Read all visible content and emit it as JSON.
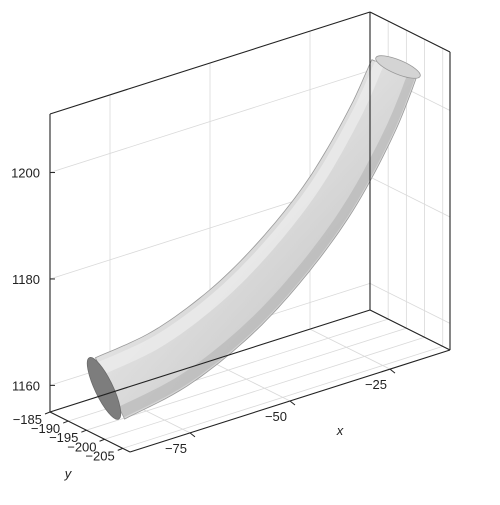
{
  "chart_data": {
    "type": "surface3d",
    "title": "",
    "axes": {
      "x": {
        "label": "x",
        "range": [
          -90,
          -10
        ],
        "ticks": [
          -75,
          -50,
          -25
        ],
        "tick_labels": [
          "−75",
          "−50",
          "−25"
        ]
      },
      "y": {
        "label": "y",
        "range": [
          -185,
          -207
        ],
        "ticks": [
          -185,
          -190,
          -195,
          -200,
          -205
        ],
        "tick_labels": [
          "−185",
          "−190",
          "−195",
          "−200",
          "−205"
        ]
      },
      "z": {
        "label": "",
        "range": [
          1155,
          1211
        ],
        "ticks": [
          1160,
          1180,
          1200
        ],
        "tick_labels": [
          "1160",
          "1180",
          "1200"
        ]
      }
    },
    "grid": true,
    "surface": {
      "description_shape": "curved tubular mesh",
      "centerline": [
        {
          "x": -85,
          "y": -196,
          "z": 1162
        },
        {
          "x": -70,
          "y": -196,
          "z": 1164
        },
        {
          "x": -55,
          "y": -196,
          "z": 1169
        },
        {
          "x": -42,
          "y": -196,
          "z": 1176
        },
        {
          "x": -30,
          "y": -196,
          "z": 1185
        },
        {
          "x": -20,
          "y": -196,
          "z": 1196
        },
        {
          "x": -14,
          "y": -196,
          "z": 1205
        }
      ],
      "color": "#bdbdbd",
      "highlight": "#e8e8e8",
      "shadow": "#8a8a8a"
    }
  }
}
